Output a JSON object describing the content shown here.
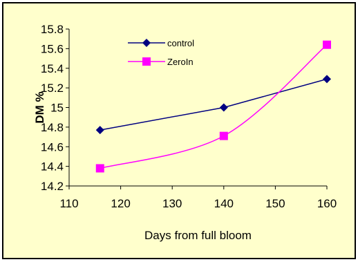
{
  "chart_data": {
    "type": "line",
    "title": "",
    "xlabel": "Days from full bloom",
    "ylabel": "DM %",
    "xlim": [
      110,
      160
    ],
    "ylim": [
      14.2,
      15.8
    ],
    "x_ticks": [
      "110",
      "120",
      "130",
      "140",
      "150",
      "160"
    ],
    "y_ticks": [
      "14.2",
      "14.4",
      "14.6",
      "14.8",
      "15",
      "15.2",
      "15.4",
      "15.6",
      "15.8"
    ],
    "grid": false,
    "legend_position": "top-center",
    "series": [
      {
        "name": "control",
        "color": "#000080",
        "marker": "diamond",
        "smooth": false,
        "x": [
          116,
          140,
          160
        ],
        "y": [
          14.77,
          15.0,
          15.29
        ]
      },
      {
        "name": "ZeroIn",
        "color": "#ff00ff",
        "marker": "square",
        "smooth": true,
        "x": [
          116,
          140,
          160
        ],
        "y": [
          14.38,
          14.71,
          15.64
        ]
      }
    ]
  }
}
